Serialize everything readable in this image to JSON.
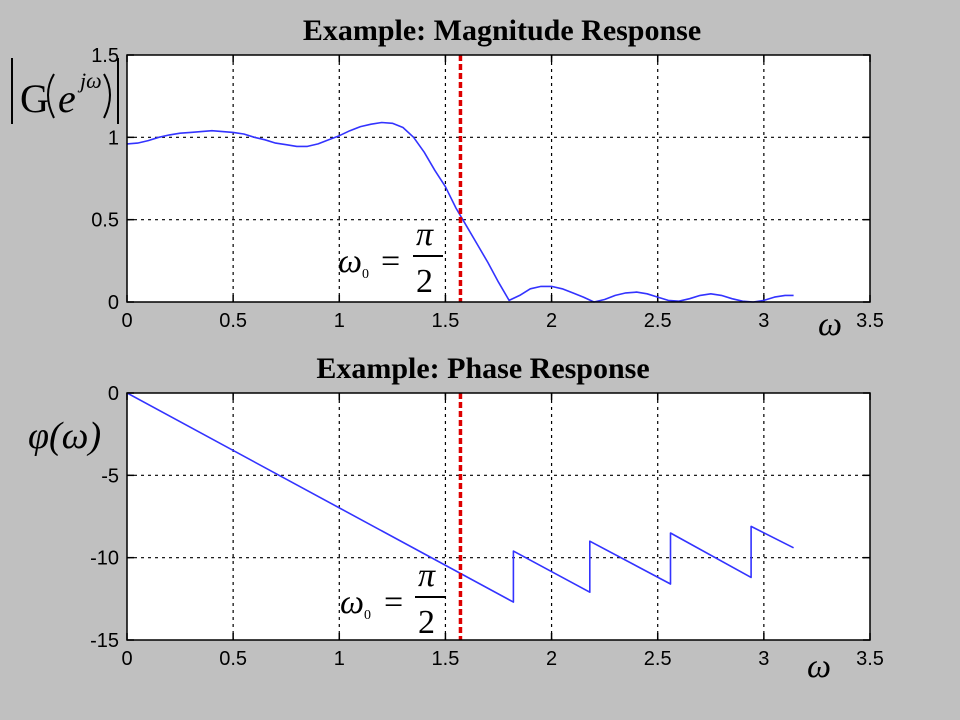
{
  "colors": {
    "background": "#c0c0c0",
    "plot_bg": "#ffffff",
    "curve": "#3333ff",
    "marker": "#dd0000",
    "grid": "#000000",
    "text": "#000000"
  },
  "chart_data": [
    {
      "type": "line",
      "title": "Example: Magnitude Response",
      "ylabel": "|G(e^{jω})|",
      "xlabel": "ω",
      "xlim": [
        0,
        3.5
      ],
      "ylim": [
        0,
        1.5
      ],
      "xticks": [
        "0",
        "0.5",
        "1",
        "1.5",
        "2",
        "2.5",
        "3",
        "3.5"
      ],
      "yticks": [
        "0",
        "0.5",
        "1",
        "1.5"
      ],
      "grid": true,
      "vline": {
        "x": 1.5708,
        "label": "ω₀ = π/2"
      },
      "series": [
        {
          "x": [
            0,
            0.05,
            0.1,
            0.15,
            0.2,
            0.25,
            0.3,
            0.35,
            0.4,
            0.45,
            0.5,
            0.55,
            0.6,
            0.65,
            0.7,
            0.75,
            0.8,
            0.85,
            0.9,
            0.95,
            1.0,
            1.05,
            1.1,
            1.15,
            1.2,
            1.25,
            1.3,
            1.35,
            1.4,
            1.45,
            1.5,
            1.55,
            1.6,
            1.65,
            1.7,
            1.75,
            1.8,
            1.85,
            1.9,
            1.95,
            2.0,
            2.05,
            2.1,
            2.15,
            2.2,
            2.25,
            2.3,
            2.35,
            2.4,
            2.45,
            2.5,
            2.55,
            2.6,
            2.65,
            2.7,
            2.75,
            2.8,
            2.85,
            2.9,
            2.95,
            3.0,
            3.05,
            3.1,
            3.14
          ],
          "values": [
            0.96,
            0.965,
            0.98,
            1.0,
            1.015,
            1.025,
            1.03,
            1.035,
            1.04,
            1.035,
            1.03,
            1.02,
            1.0,
            0.985,
            0.965,
            0.955,
            0.945,
            0.945,
            0.96,
            0.985,
            1.01,
            1.04,
            1.065,
            1.08,
            1.09,
            1.085,
            1.06,
            1.0,
            0.91,
            0.8,
            0.7,
            0.57,
            0.46,
            0.35,
            0.24,
            0.12,
            0.01,
            0.04,
            0.08,
            0.095,
            0.095,
            0.08,
            0.055,
            0.03,
            0.0,
            0.015,
            0.04,
            0.055,
            0.06,
            0.05,
            0.03,
            0.01,
            0.005,
            0.02,
            0.04,
            0.05,
            0.04,
            0.02,
            0.005,
            0.0,
            0.01,
            0.03,
            0.04,
            0.04
          ]
        }
      ]
    },
    {
      "type": "line",
      "title": "Example: Phase Response",
      "ylabel": "φ(ω)",
      "xlabel": "ω",
      "xlim": [
        0,
        3.5
      ],
      "ylim": [
        -15,
        0
      ],
      "xticks": [
        "0",
        "0.5",
        "1",
        "1.5",
        "2",
        "2.5",
        "3",
        "3.5"
      ],
      "yticks": [
        "-15",
        "-10",
        "-5",
        "0"
      ],
      "grid": true,
      "vline": {
        "x": 1.5708,
        "label": "ω₀ = π/2"
      },
      "series": [
        {
          "x": [
            0,
            1.82,
            1.82,
            2.18,
            2.18,
            2.56,
            2.56,
            2.94,
            2.94,
            3.14
          ],
          "values": [
            0,
            -12.7,
            -9.6,
            -12.1,
            -9.0,
            -11.6,
            -8.5,
            -11.2,
            -8.1,
            -9.4
          ]
        }
      ]
    }
  ]
}
